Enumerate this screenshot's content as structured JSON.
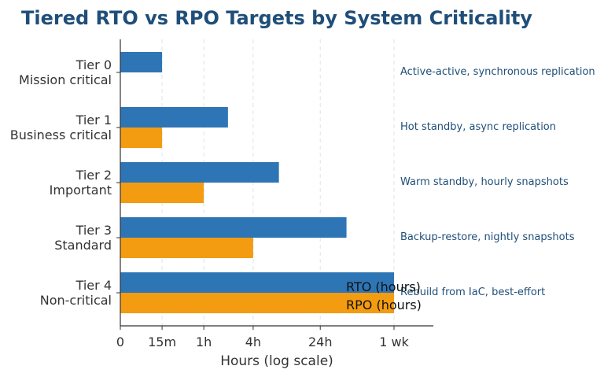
{
  "chart_data": {
    "type": "bar",
    "orientation": "horizontal",
    "title": "Tiered RTO vs RPO Targets by System Criticality",
    "xlabel": "Hours (log scale)",
    "ylabel": "",
    "x_scale": "symlog",
    "x_ticks": [
      {
        "value": 0,
        "label": "0"
      },
      {
        "value": 0.25,
        "label": "15m"
      },
      {
        "value": 1,
        "label": "1h"
      },
      {
        "value": 4,
        "label": "4h"
      },
      {
        "value": 24,
        "label": "24h"
      },
      {
        "value": 168,
        "label": "1 wk"
      }
    ],
    "xlim": [
      0,
      700
    ],
    "categories": [
      {
        "tier": "Tier 0",
        "desc": "Mission critical"
      },
      {
        "tier": "Tier 1",
        "desc": "Business critical"
      },
      {
        "tier": "Tier 2",
        "desc": "Important"
      },
      {
        "tier": "Tier 3",
        "desc": "Standard"
      },
      {
        "tier": "Tier 4",
        "desc": "Non-critical"
      }
    ],
    "series": [
      {
        "name": "RTO (hours)",
        "color": "#2e75b6",
        "values": [
          0.25,
          2,
          8,
          48,
          168
        ]
      },
      {
        "name": "RPO (hours)",
        "color": "#f39c12",
        "values": [
          0,
          0.25,
          1,
          4,
          168
        ]
      }
    ],
    "annotations": [
      "Active-active, synchronous replication",
      "Hot standby, async replication",
      "Warm standby, hourly snapshots",
      "Backup-restore, nightly snapshots",
      "Rebuild from IaC, best-effort"
    ],
    "legend_position": "bottom-right",
    "grid": true
  }
}
